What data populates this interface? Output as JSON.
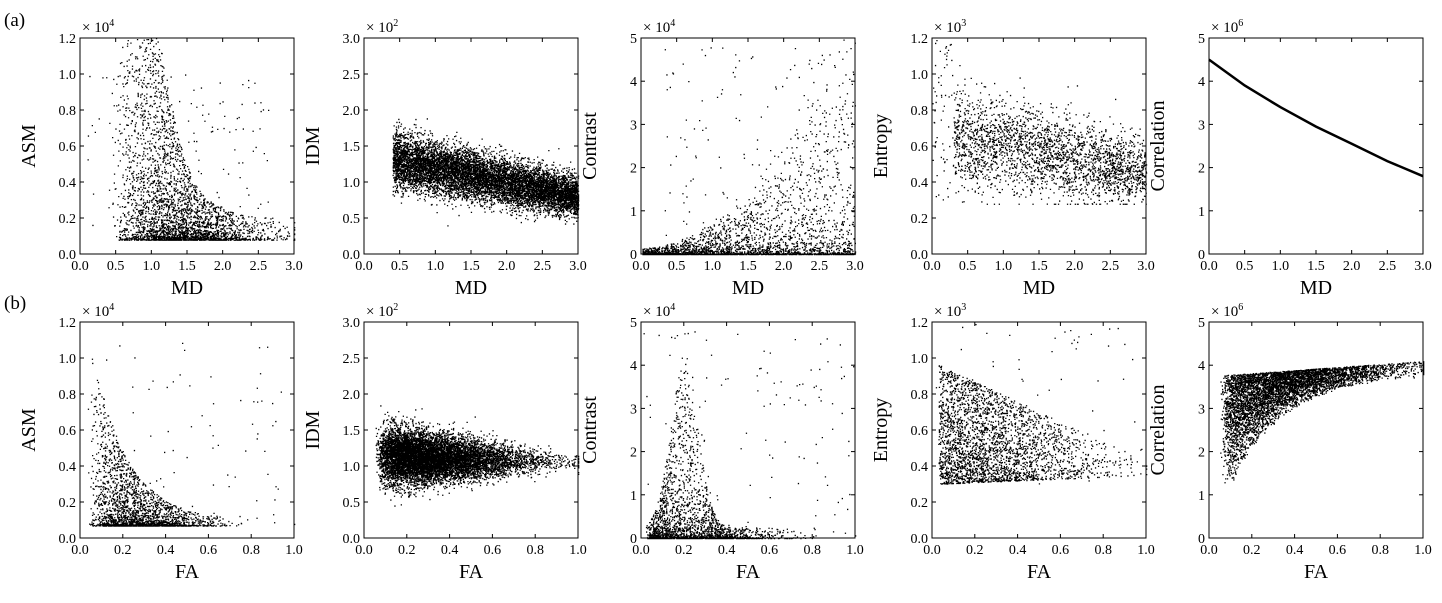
{
  "figure": {
    "row_labels": [
      "(a)",
      "(b)"
    ],
    "xlabels": [
      "MD",
      "FA"
    ]
  },
  "colors": {
    "points": "#000000",
    "axes": "#000000",
    "background": "#ffffff"
  },
  "chart_data": [
    {
      "type": "scatter",
      "row": 0,
      "col": 0,
      "xlabel": "MD",
      "ylabel": "ASM",
      "multiplier": "× 10",
      "exponent": "4",
      "xlim": [
        0,
        3
      ],
      "ylim": [
        0,
        1.2
      ],
      "xticks": [
        "0.0",
        "0.5",
        "1.0",
        "1.5",
        "2.0",
        "2.5",
        "3.0"
      ],
      "yticks": [
        "0.0",
        "0.2",
        "0.4",
        "0.6",
        "0.8",
        "1.0",
        "1.2"
      ],
      "shape": "asm_md"
    },
    {
      "type": "scatter",
      "row": 0,
      "col": 1,
      "xlabel": "MD",
      "ylabel": "IDM",
      "multiplier": "× 10",
      "exponent": "2",
      "xlim": [
        0,
        3
      ],
      "ylim": [
        0,
        3
      ],
      "xticks": [
        "0.0",
        "0.5",
        "1.0",
        "1.5",
        "2.0",
        "2.5",
        "3.0"
      ],
      "yticks": [
        "0.0",
        "0.5",
        "1.0",
        "1.5",
        "2.0",
        "2.5",
        "3.0"
      ],
      "shape": "idm_md"
    },
    {
      "type": "scatter",
      "row": 0,
      "col": 2,
      "xlabel": "MD",
      "ylabel": "Contrast",
      "multiplier": "× 10",
      "exponent": "4",
      "xlim": [
        0,
        3
      ],
      "ylim": [
        0,
        5
      ],
      "xticks": [
        "0.0",
        "0.5",
        "1.0",
        "1.5",
        "2.0",
        "2.5",
        "3.0"
      ],
      "yticks": [
        "0",
        "1",
        "2",
        "3",
        "4",
        "5"
      ],
      "shape": "con_md"
    },
    {
      "type": "scatter",
      "row": 0,
      "col": 3,
      "xlabel": "MD",
      "ylabel": "Entropy",
      "multiplier": "× 10",
      "exponent": "3",
      "xlim": [
        0,
        3
      ],
      "ylim": [
        0,
        1.2
      ],
      "xticks": [
        "0.0",
        "0.5",
        "1.0",
        "1.5",
        "2.0",
        "2.5",
        "3.0"
      ],
      "yticks": [
        "0.0",
        "0.2",
        "0.4",
        "0.6",
        "0.8",
        "1.0",
        "1.2"
      ],
      "shape": "ent_md"
    },
    {
      "type": "line",
      "row": 0,
      "col": 4,
      "xlabel": "MD",
      "ylabel": "Correlation",
      "multiplier": "× 10",
      "exponent": "6",
      "xlim": [
        0,
        3
      ],
      "ylim": [
        0,
        5
      ],
      "xticks": [
        "0.0",
        "0.5",
        "1.0",
        "1.5",
        "2.0",
        "2.5",
        "3.0"
      ],
      "yticks": [
        "0",
        "1",
        "2",
        "3",
        "4",
        "5"
      ],
      "shape": "cor_md",
      "x": [
        0,
        0.5,
        1.0,
        1.5,
        2.0,
        2.5,
        3.0
      ],
      "y": [
        4.5,
        3.9,
        3.4,
        2.95,
        2.55,
        2.15,
        1.8
      ]
    },
    {
      "type": "scatter",
      "row": 1,
      "col": 0,
      "xlabel": "FA",
      "ylabel": "ASM",
      "multiplier": "× 10",
      "exponent": "4",
      "xlim": [
        0,
        1
      ],
      "ylim": [
        0,
        1.2
      ],
      "xticks": [
        "0.0",
        "0.2",
        "0.4",
        "0.6",
        "0.8",
        "1.0"
      ],
      "yticks": [
        "0.0",
        "0.2",
        "0.4",
        "0.6",
        "0.8",
        "1.0",
        "1.2"
      ],
      "shape": "asm_fa"
    },
    {
      "type": "scatter",
      "row": 1,
      "col": 1,
      "xlabel": "FA",
      "ylabel": "IDM",
      "multiplier": "× 10",
      "exponent": "2",
      "xlim": [
        0,
        1
      ],
      "ylim": [
        0,
        3
      ],
      "xticks": [
        "0.0",
        "0.2",
        "0.4",
        "0.6",
        "0.8",
        "1.0"
      ],
      "yticks": [
        "0.0",
        "0.5",
        "1.0",
        "1.5",
        "2.0",
        "2.5",
        "3.0"
      ],
      "shape": "idm_fa"
    },
    {
      "type": "scatter",
      "row": 1,
      "col": 2,
      "xlabel": "FA",
      "ylabel": "Contrast",
      "multiplier": "× 10",
      "exponent": "4",
      "xlim": [
        0,
        1
      ],
      "ylim": [
        0,
        5
      ],
      "xticks": [
        "0.0",
        "0.2",
        "0.4",
        "0.6",
        "0.8",
        "1.0"
      ],
      "yticks": [
        "0",
        "1",
        "2",
        "3",
        "4",
        "5"
      ],
      "shape": "con_fa"
    },
    {
      "type": "scatter",
      "row": 1,
      "col": 3,
      "xlabel": "FA",
      "ylabel": "Entropy",
      "multiplier": "× 10",
      "exponent": "3",
      "xlim": [
        0,
        1
      ],
      "ylim": [
        0,
        1.2
      ],
      "xticks": [
        "0.0",
        "0.2",
        "0.4",
        "0.6",
        "0.8",
        "1.0"
      ],
      "yticks": [
        "0.0",
        "0.2",
        "0.4",
        "0.6",
        "0.8",
        "1.0",
        "1.2"
      ],
      "shape": "ent_fa"
    },
    {
      "type": "scatter",
      "row": 1,
      "col": 4,
      "xlabel": "FA",
      "ylabel": "Correlation",
      "multiplier": "× 10",
      "exponent": "6",
      "xlim": [
        0,
        1
      ],
      "ylim": [
        0,
        5
      ],
      "xticks": [
        "0.0",
        "0.2",
        "0.4",
        "0.6",
        "0.8",
        "1.0"
      ],
      "yticks": [
        "0",
        "1",
        "2",
        "3",
        "4",
        "5"
      ],
      "shape": "cor_fa"
    }
  ]
}
